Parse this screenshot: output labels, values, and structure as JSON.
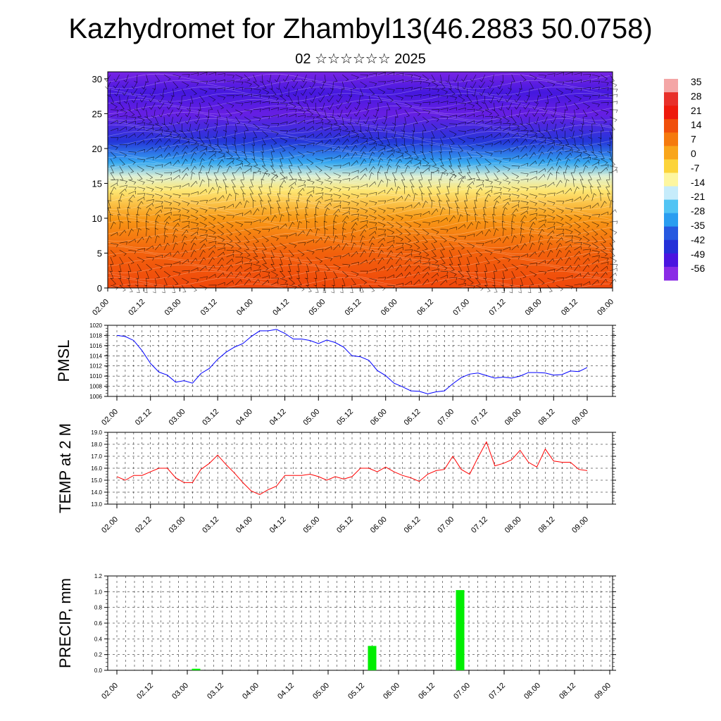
{
  "title": "Kazhydromet for Zhambyl13(46.2883 50.0758)",
  "subtitle": "02 ☆☆☆☆☆☆ 2025",
  "time_labels": [
    "02.00",
    "02.12",
    "03.00",
    "03.12",
    "04.00",
    "04.12",
    "05.00",
    "05.12",
    "06.00",
    "06.12",
    "07.00",
    "07.12",
    "08.00",
    "08.12",
    "09.00"
  ],
  "chart_data": [
    {
      "type": "heatmap",
      "xlabel": "",
      "ylabel": "",
      "ylim": [
        0,
        31
      ],
      "yticks": [
        0,
        5,
        10,
        15,
        20,
        25,
        30
      ],
      "colorbar": {
        "labels": [
          "35",
          "28",
          "21",
          "14",
          "7",
          "0",
          "-7",
          "-14",
          "-21",
          "-28",
          "-35",
          "-42",
          "-49",
          "-56"
        ],
        "colors": [
          "#f4a6a6",
          "#e8302a",
          "#ee1a0c",
          "#f04f0b",
          "#f57a0d",
          "#f9a51a",
          "#fcd43a",
          "#fdf6a0",
          "#c6ecfb",
          "#52c4f4",
          "#2a9df0",
          "#2659e0",
          "#2430d8",
          "#4b14e0",
          "#8a2be6"
        ]
      },
      "levels": [
        {
          "height": 0,
          "temp": 18
        },
        {
          "height": 5,
          "temp": 14
        },
        {
          "height": 10,
          "temp": 5
        },
        {
          "height": 14,
          "temp": -8
        },
        {
          "height": 16,
          "temp": -15
        },
        {
          "height": 18,
          "temp": -30
        },
        {
          "height": 21,
          "temp": -45
        },
        {
          "height": 25,
          "temp": -56
        },
        {
          "height": 28,
          "temp": -52
        },
        {
          "height": 31,
          "temp": -58
        }
      ],
      "note_series": "wind barbs overlay"
    },
    {
      "type": "line",
      "ylabel": "PMSL",
      "ylim": [
        1006,
        1020
      ],
      "yticks": [
        1006,
        1008,
        1010,
        1012,
        1014,
        1016,
        1018,
        1020
      ],
      "color": "#0000ff",
      "x": [
        0,
        1,
        2,
        3,
        4,
        5,
        6,
        7,
        8,
        9,
        10,
        11,
        12,
        13,
        14,
        15,
        16,
        17,
        18,
        19,
        20,
        21,
        22,
        23,
        24,
        25,
        26,
        27,
        28,
        29,
        30,
        31,
        32,
        33,
        34,
        35,
        36,
        37,
        38,
        39,
        40,
        41,
        42,
        43,
        44,
        45,
        46,
        47,
        48,
        49,
        50,
        51,
        52,
        53,
        54,
        55,
        56
      ],
      "values": [
        1018.0,
        1017.8,
        1017.0,
        1015.0,
        1012.5,
        1010.8,
        1010.2,
        1008.8,
        1009.1,
        1008.6,
        1010.5,
        1011.5,
        1013.3,
        1014.7,
        1015.7,
        1016.4,
        1017.8,
        1018.9,
        1018.9,
        1019.2,
        1018.4,
        1017.3,
        1017.3,
        1017.0,
        1016.4,
        1017.1,
        1016.6,
        1015.7,
        1014.0,
        1013.8,
        1013.1,
        1011.1,
        1010.1,
        1008.6,
        1007.9,
        1007.1,
        1007.0,
        1006.5,
        1006.9,
        1007.1,
        1008.5,
        1009.7,
        1010.4,
        1010.6,
        1010.1,
        1009.6,
        1009.8,
        1009.6,
        1010.0,
        1010.7,
        1010.7,
        1010.6,
        1010.2,
        1010.3,
        1011.0,
        1010.9,
        1011.7
      ]
    },
    {
      "type": "line",
      "ylabel": "TEMP at 2 M",
      "ylim": [
        13.0,
        19.0
      ],
      "yticks": [
        "13.0",
        "14.0",
        "15.0",
        "16.0",
        "17.0",
        "18.0",
        "19.0"
      ],
      "color": "#ff0000",
      "x": [
        0,
        1,
        2,
        3,
        4,
        5,
        6,
        7,
        8,
        9,
        10,
        11,
        12,
        13,
        14,
        15,
        16,
        17,
        18,
        19,
        20,
        21,
        22,
        23,
        24,
        25,
        26,
        27,
        28,
        29,
        30,
        31,
        32,
        33,
        34,
        35,
        36,
        37,
        38,
        39,
        40,
        41,
        42,
        43,
        44,
        45,
        46,
        47,
        48,
        49,
        50,
        51,
        52,
        53,
        54,
        55,
        56
      ],
      "values": [
        15.3,
        15.0,
        15.4,
        15.4,
        15.7,
        16.0,
        16.0,
        15.2,
        14.8,
        14.8,
        15.9,
        16.4,
        17.1,
        16.3,
        15.6,
        14.8,
        14.1,
        13.8,
        14.2,
        14.5,
        15.4,
        15.4,
        15.4,
        15.5,
        15.3,
        15.0,
        15.3,
        15.1,
        15.3,
        16.0,
        16.0,
        15.7,
        16.1,
        15.7,
        15.4,
        15.2,
        14.9,
        15.5,
        15.8,
        15.9,
        17.0,
        15.9,
        15.5,
        16.9,
        18.2,
        16.2,
        16.4,
        16.7,
        17.5,
        16.5,
        16.1,
        17.6,
        16.6,
        16.5,
        16.5,
        15.9,
        15.8
      ]
    },
    {
      "type": "bar",
      "ylabel": "PRECIP, mm",
      "ylim": [
        0.0,
        1.2
      ],
      "yticks": [
        "0.0",
        "0.2",
        "0.4",
        "0.6",
        "0.8",
        "1.0",
        "1.2"
      ],
      "color": "#00ee00",
      "bars": [
        {
          "x": 9.0,
          "value": 0.02
        },
        {
          "x": 29.0,
          "value": 0.31
        },
        {
          "x": 39.0,
          "value": 1.02
        }
      ]
    }
  ]
}
